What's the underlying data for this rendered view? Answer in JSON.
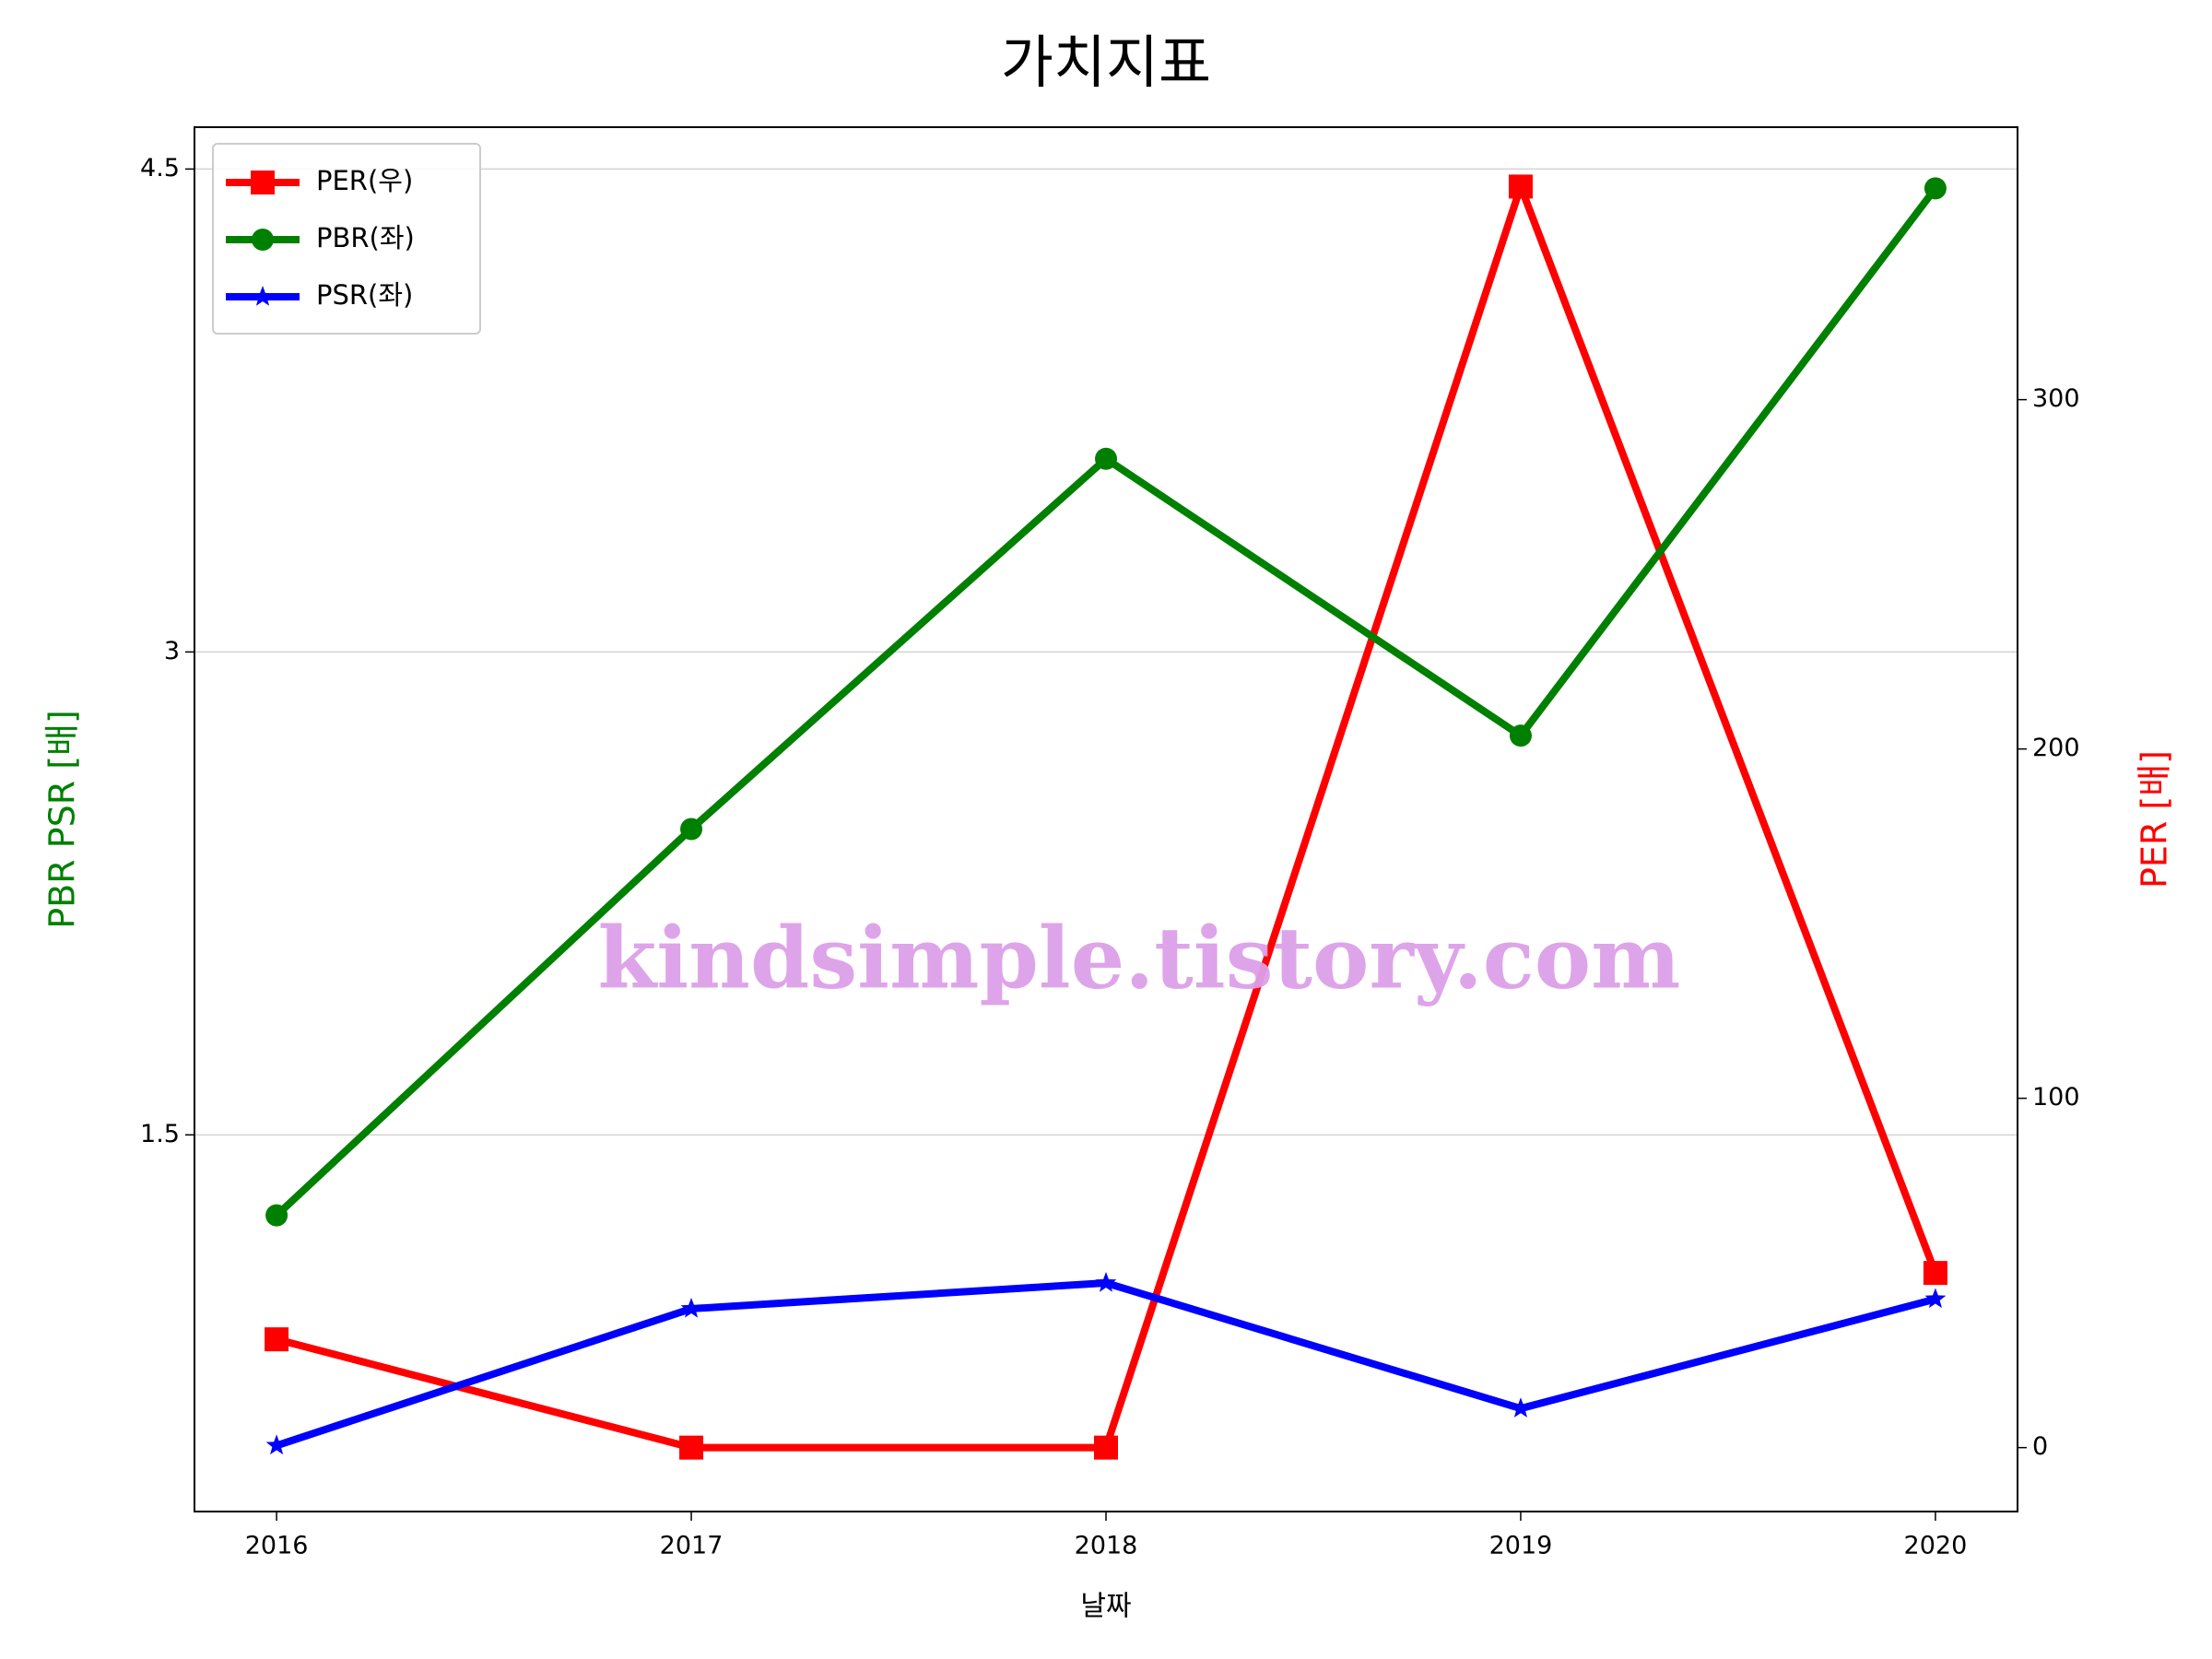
{
  "chart_data": {
    "type": "line",
    "title": "가치지표",
    "x_label": "날짜",
    "y_label": "PBR PSR [배]",
    "y2_label": "PER [배]",
    "watermark": "kindsimple.tistory.com",
    "categories": [
      "2016",
      "2017",
      "2018",
      "2019",
      "2020"
    ],
    "series": [
      {
        "name": "PER(우)",
        "color": "#ff0000",
        "marker": "square",
        "axis": "y2",
        "values": [
          31,
          0,
          0,
          361,
          50
        ]
      },
      {
        "name": "PBR(좌)",
        "color": "#008000",
        "marker": "circle",
        "axis": "y",
        "values": [
          1.25,
          2.45,
          3.6,
          2.74,
          4.44
        ]
      },
      {
        "name": "PSR(좌)",
        "color": "#0000ff",
        "marker": "star",
        "axis": "y",
        "values": [
          0.535,
          0.96,
          1.04,
          0.65,
          0.99
        ]
      }
    ],
    "ylim": [
      0.33,
      4.63
    ],
    "yticks": [
      1.5,
      3.0,
      4.5
    ],
    "y2lim": [
      -18.3,
      378
    ],
    "y2ticks": [
      0,
      100,
      200,
      300
    ],
    "grid": true,
    "legend": "upper-left"
  }
}
